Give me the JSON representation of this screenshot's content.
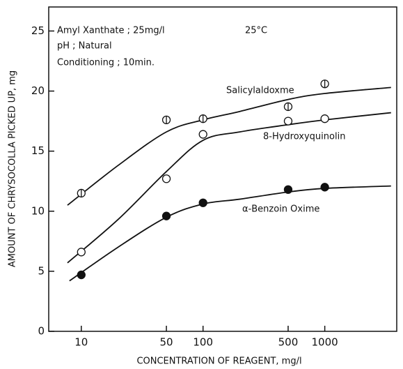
{
  "chart_data": {
    "type": "scatter",
    "x_label": "CONCENTRATION OF REAGENT, mg/l",
    "y_label": "AMOUNT OF CHRYSOCOLLA PICKED UP, mg",
    "annotations": [
      "Amyl Xanthate ; 25mg/l",
      "25°C",
      "pH ; Natural",
      "Conditioning ; 10min."
    ],
    "x": [
      10,
      50,
      100,
      500,
      1000
    ],
    "series": [
      {
        "name": "Salicylaldoxme",
        "marker": "circle-bar",
        "color": "#111111",
        "values": [
          11.5,
          17.6,
          17.7,
          18.7,
          20.6
        ],
        "curve": {
          "x": [
            7.7,
            20,
            50,
            100,
            200,
            500,
            1000,
            3500
          ],
          "y": [
            10.5,
            13.8,
            16.6,
            17.6,
            18.3,
            19.3,
            19.8,
            20.3
          ]
        }
      },
      {
        "name": "8-Hydroxyquinolin",
        "marker": "open",
        "color": "#111111",
        "values": [
          6.6,
          12.7,
          16.4,
          17.5,
          17.7
        ],
        "curve": {
          "x": [
            7.7,
            20,
            50,
            100,
            200,
            500,
            1000,
            3500
          ],
          "y": [
            5.7,
            9.3,
            13.3,
            15.9,
            16.6,
            17.2,
            17.6,
            18.2
          ]
        }
      },
      {
        "name": "α-Benzoin Oxime",
        "marker": "filled",
        "color": "#111111",
        "values": [
          4.7,
          9.6,
          10.7,
          11.8,
          12.0
        ],
        "curve": {
          "x": [
            8,
            20,
            50,
            100,
            200,
            500,
            1000,
            3500
          ],
          "y": [
            4.2,
            7.0,
            9.5,
            10.6,
            11.0,
            11.6,
            11.9,
            12.1
          ]
        }
      }
    ],
    "xscale": "log",
    "xlim": [
      5.4,
      3900
    ],
    "xticks": [
      10,
      50,
      100,
      500,
      1000
    ],
    "ylim": [
      0,
      27
    ],
    "yticks": [
      0,
      5,
      10,
      15,
      20,
      25
    ]
  }
}
